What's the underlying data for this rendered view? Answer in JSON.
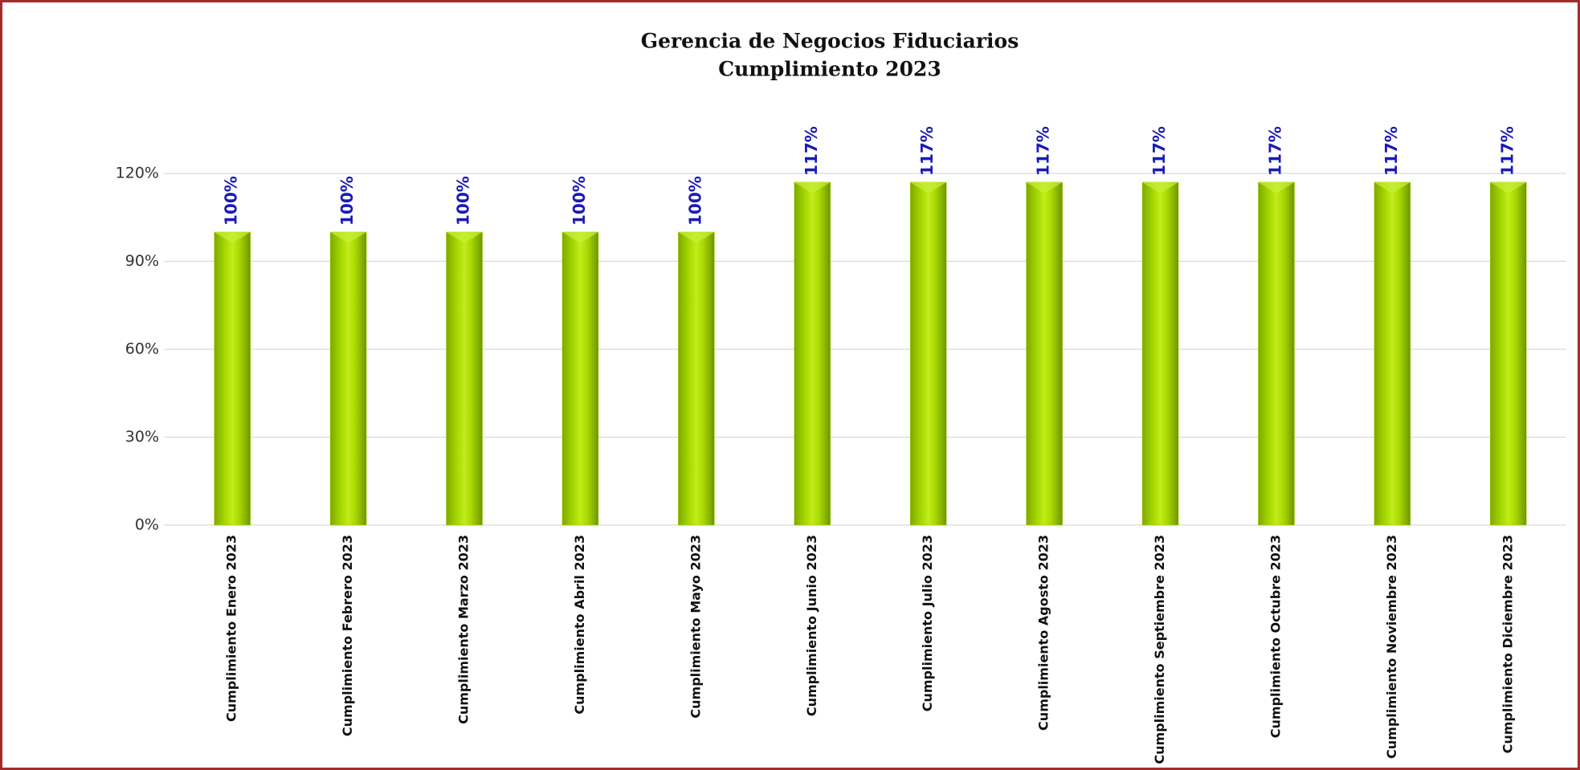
{
  "chart_data": {
    "type": "bar",
    "title": "Gerencia de Negocios Fiduciarios",
    "subtitle": "Cumplimiento 2023",
    "categories": [
      "Cumplimiento Enero 2023",
      "Cumplimiento Febrero 2023",
      "Cumplimiento Marzo 2023",
      "Cumplimiento Abril 2023",
      "Cumplimiento Mayo 2023",
      "Cumplimiento Junio 2023",
      "Cumplimiento Julio 2023",
      "Cumplimiento Agosto 2023",
      "Cumplimiento Septiembre 2023",
      "Cumplimiento Octubre 2023",
      "Cumplimiento Noviembre 2023",
      "Cumplimiento Diciembre 2023"
    ],
    "values": [
      100,
      100,
      100,
      100,
      100,
      117,
      117,
      117,
      117,
      117,
      117,
      117
    ],
    "value_labels": [
      "100%",
      "100%",
      "100%",
      "100%",
      "100%",
      "117%",
      "117%",
      "117%",
      "117%",
      "117%",
      "117%",
      "117%"
    ],
    "color": "#9acd00",
    "ylim": [
      0,
      120
    ],
    "yticks": [
      {
        "value": 0,
        "label": "0%"
      },
      {
        "value": 30,
        "label": "30%"
      },
      {
        "value": 60,
        "label": "60%"
      },
      {
        "value": 90,
        "label": "90%"
      },
      {
        "value": 120,
        "label": "120%"
      }
    ],
    "grid": true
  }
}
